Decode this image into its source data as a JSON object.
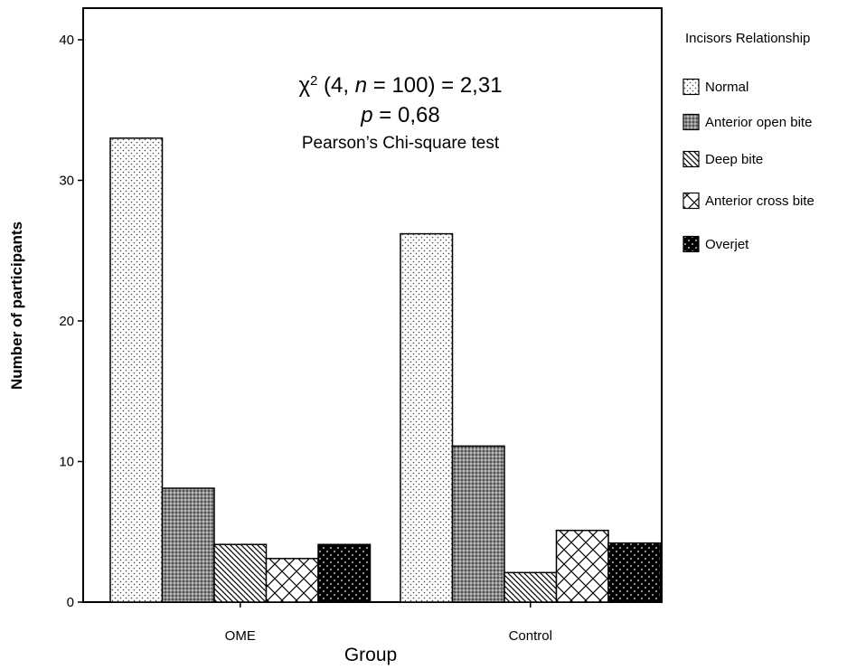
{
  "chart_data": {
    "type": "bar",
    "title": "",
    "xlabel": "Group",
    "ylabel": "Number of participants",
    "ylim": [
      0,
      43
    ],
    "yticks": [
      0,
      10,
      20,
      30,
      40
    ],
    "categories": [
      "OME",
      "Control"
    ],
    "legend_title": "Incisors Relationship",
    "legend_position": "right",
    "grid": false,
    "series": [
      {
        "name": "Normal",
        "values": [
          33,
          26.2
        ],
        "pattern": "dots-sparse"
      },
      {
        "name": "Anterior open bite",
        "values": [
          8.1,
          11.1
        ],
        "pattern": "dots-dense"
      },
      {
        "name": "Deep bite",
        "values": [
          4.1,
          2.1
        ],
        "pattern": "diagonal"
      },
      {
        "name": "Anterior cross bite",
        "values": [
          3.1,
          5.1
        ],
        "pattern": "crosshatch"
      },
      {
        "name": "Overjet",
        "values": [
          4.1,
          4.2
        ],
        "pattern": "black-dots"
      }
    ],
    "annotation": {
      "chi_symbol": "χ",
      "chi_sup": "2",
      "chi_open": " (4, ",
      "chi_n": "n",
      "chi_rest": " = 100) = 2,31",
      "p_symbol": "p",
      "p_rest": " = 0,68",
      "test_name": "Pearson’s Chi-square test"
    }
  }
}
